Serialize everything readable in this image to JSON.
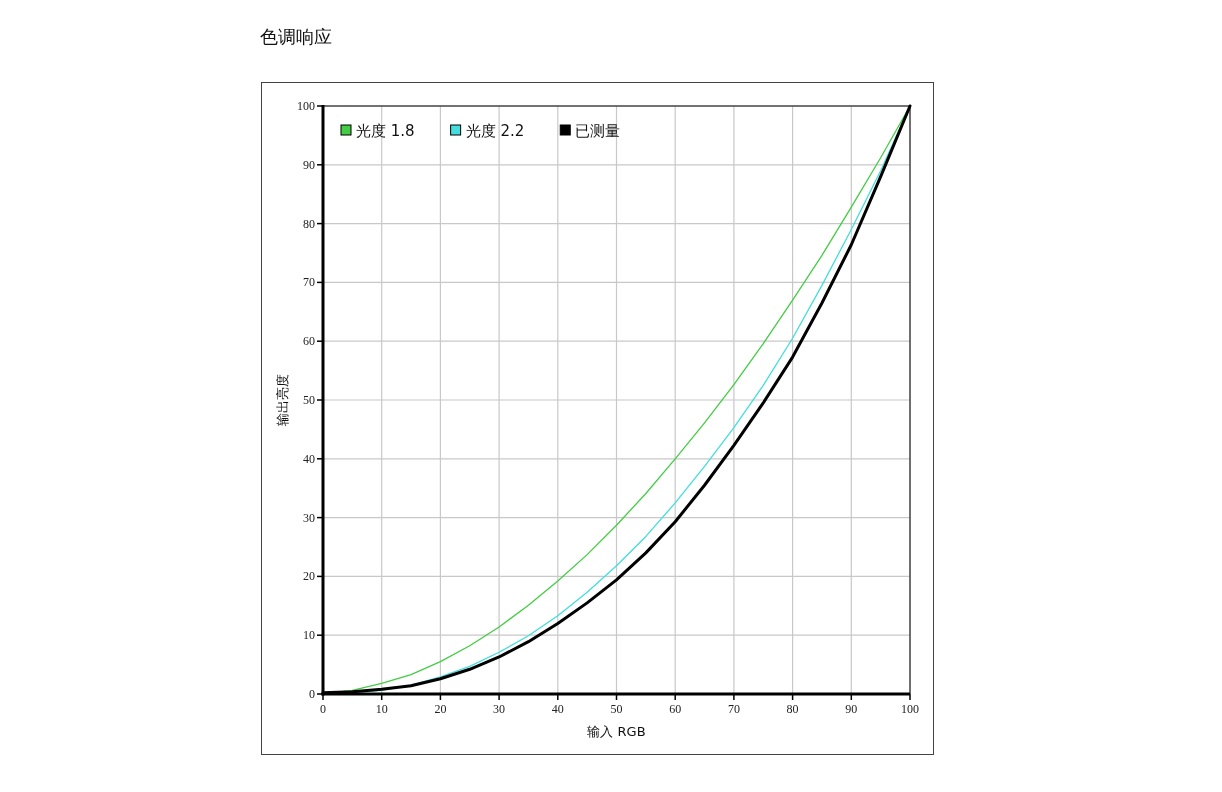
{
  "chart_data": {
    "type": "line",
    "title": "色调响应",
    "xlabel": "输入 RGB",
    "ylabel": "输出亮度",
    "x": [
      0,
      5,
      10,
      15,
      20,
      25,
      30,
      35,
      40,
      45,
      50,
      55,
      60,
      65,
      70,
      75,
      80,
      85,
      90,
      95,
      100
    ],
    "series": [
      {
        "name": "光度 1.8",
        "color": "#44cc44",
        "values": [
          0,
          0.6,
          1.8,
          3.3,
          5.5,
          8.2,
          11.4,
          15.1,
          19.2,
          23.7,
          28.7,
          34.1,
          40,
          46.1,
          52.6,
          59.6,
          67,
          74.6,
          82.8,
          91.2,
          100
        ]
      },
      {
        "name": "光度 2.2",
        "color": "#44dddd",
        "values": [
          0,
          0.2,
          0.6,
          1.5,
          2.9,
          4.7,
          7.1,
          9.9,
          13.3,
          17.3,
          21.8,
          26.8,
          32.5,
          38.7,
          45.3,
          52.5,
          60.5,
          69.5,
          79,
          89,
          100
        ]
      },
      {
        "name": "已测量",
        "color": "#000000",
        "values": [
          0.2,
          0.4,
          0.8,
          1.4,
          2.6,
          4.2,
          6.3,
          8.9,
          12,
          15.5,
          19.4,
          24,
          29.3,
          35.5,
          42.3,
          49.5,
          57.3,
          66.5,
          76.4,
          88,
          100
        ]
      }
    ],
    "xlim": [
      0,
      100
    ],
    "ylim": [
      0,
      100
    ],
    "xticks": [
      0,
      10,
      20,
      30,
      40,
      50,
      60,
      70,
      80,
      90,
      100
    ],
    "yticks": [
      0,
      10,
      20,
      30,
      40,
      50,
      60,
      70,
      80,
      90,
      100
    ],
    "grid": true,
    "legend": "top left"
  }
}
